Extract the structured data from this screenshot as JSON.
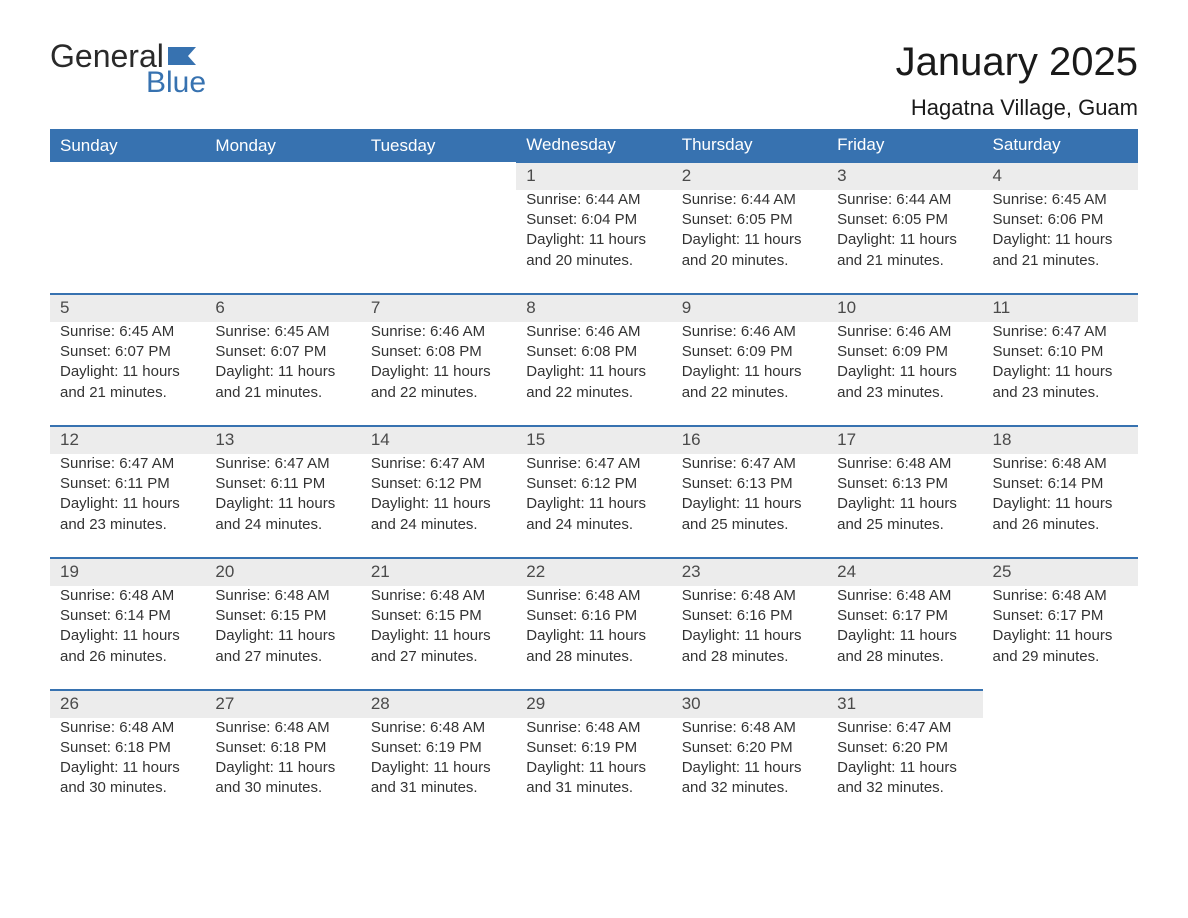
{
  "brand": {
    "line1": "General",
    "line2": "Blue",
    "flag_color": "#3772b0"
  },
  "title": "January 2025",
  "location": "Hagatna Village, Guam",
  "colors": {
    "header_bg": "#3772b0",
    "header_text": "#ffffff",
    "daynum_bg": "#ececec",
    "daynum_border": "#3772b0",
    "body_text": "#333333"
  },
  "weekdays": [
    "Sunday",
    "Monday",
    "Tuesday",
    "Wednesday",
    "Thursday",
    "Friday",
    "Saturday"
  ],
  "weeks": [
    [
      null,
      null,
      null,
      {
        "n": "1",
        "sunrise": "6:44 AM",
        "sunset": "6:04 PM",
        "daylight": "11 hours and 20 minutes."
      },
      {
        "n": "2",
        "sunrise": "6:44 AM",
        "sunset": "6:05 PM",
        "daylight": "11 hours and 20 minutes."
      },
      {
        "n": "3",
        "sunrise": "6:44 AM",
        "sunset": "6:05 PM",
        "daylight": "11 hours and 21 minutes."
      },
      {
        "n": "4",
        "sunrise": "6:45 AM",
        "sunset": "6:06 PM",
        "daylight": "11 hours and 21 minutes."
      }
    ],
    [
      {
        "n": "5",
        "sunrise": "6:45 AM",
        "sunset": "6:07 PM",
        "daylight": "11 hours and 21 minutes."
      },
      {
        "n": "6",
        "sunrise": "6:45 AM",
        "sunset": "6:07 PM",
        "daylight": "11 hours and 21 minutes."
      },
      {
        "n": "7",
        "sunrise": "6:46 AM",
        "sunset": "6:08 PM",
        "daylight": "11 hours and 22 minutes."
      },
      {
        "n": "8",
        "sunrise": "6:46 AM",
        "sunset": "6:08 PM",
        "daylight": "11 hours and 22 minutes."
      },
      {
        "n": "9",
        "sunrise": "6:46 AM",
        "sunset": "6:09 PM",
        "daylight": "11 hours and 22 minutes."
      },
      {
        "n": "10",
        "sunrise": "6:46 AM",
        "sunset": "6:09 PM",
        "daylight": "11 hours and 23 minutes."
      },
      {
        "n": "11",
        "sunrise": "6:47 AM",
        "sunset": "6:10 PM",
        "daylight": "11 hours and 23 minutes."
      }
    ],
    [
      {
        "n": "12",
        "sunrise": "6:47 AM",
        "sunset": "6:11 PM",
        "daylight": "11 hours and 23 minutes."
      },
      {
        "n": "13",
        "sunrise": "6:47 AM",
        "sunset": "6:11 PM",
        "daylight": "11 hours and 24 minutes."
      },
      {
        "n": "14",
        "sunrise": "6:47 AM",
        "sunset": "6:12 PM",
        "daylight": "11 hours and 24 minutes."
      },
      {
        "n": "15",
        "sunrise": "6:47 AM",
        "sunset": "6:12 PM",
        "daylight": "11 hours and 24 minutes."
      },
      {
        "n": "16",
        "sunrise": "6:47 AM",
        "sunset": "6:13 PM",
        "daylight": "11 hours and 25 minutes."
      },
      {
        "n": "17",
        "sunrise": "6:48 AM",
        "sunset": "6:13 PM",
        "daylight": "11 hours and 25 minutes."
      },
      {
        "n": "18",
        "sunrise": "6:48 AM",
        "sunset": "6:14 PM",
        "daylight": "11 hours and 26 minutes."
      }
    ],
    [
      {
        "n": "19",
        "sunrise": "6:48 AM",
        "sunset": "6:14 PM",
        "daylight": "11 hours and 26 minutes."
      },
      {
        "n": "20",
        "sunrise": "6:48 AM",
        "sunset": "6:15 PM",
        "daylight": "11 hours and 27 minutes."
      },
      {
        "n": "21",
        "sunrise": "6:48 AM",
        "sunset": "6:15 PM",
        "daylight": "11 hours and 27 minutes."
      },
      {
        "n": "22",
        "sunrise": "6:48 AM",
        "sunset": "6:16 PM",
        "daylight": "11 hours and 28 minutes."
      },
      {
        "n": "23",
        "sunrise": "6:48 AM",
        "sunset": "6:16 PM",
        "daylight": "11 hours and 28 minutes."
      },
      {
        "n": "24",
        "sunrise": "6:48 AM",
        "sunset": "6:17 PM",
        "daylight": "11 hours and 28 minutes."
      },
      {
        "n": "25",
        "sunrise": "6:48 AM",
        "sunset": "6:17 PM",
        "daylight": "11 hours and 29 minutes."
      }
    ],
    [
      {
        "n": "26",
        "sunrise": "6:48 AM",
        "sunset": "6:18 PM",
        "daylight": "11 hours and 30 minutes."
      },
      {
        "n": "27",
        "sunrise": "6:48 AM",
        "sunset": "6:18 PM",
        "daylight": "11 hours and 30 minutes."
      },
      {
        "n": "28",
        "sunrise": "6:48 AM",
        "sunset": "6:19 PM",
        "daylight": "11 hours and 31 minutes."
      },
      {
        "n": "29",
        "sunrise": "6:48 AM",
        "sunset": "6:19 PM",
        "daylight": "11 hours and 31 minutes."
      },
      {
        "n": "30",
        "sunrise": "6:48 AM",
        "sunset": "6:20 PM",
        "daylight": "11 hours and 32 minutes."
      },
      {
        "n": "31",
        "sunrise": "6:47 AM",
        "sunset": "6:20 PM",
        "daylight": "11 hours and 32 minutes."
      },
      null
    ]
  ],
  "labels": {
    "sunrise": "Sunrise:",
    "sunset": "Sunset:",
    "daylight": "Daylight:"
  }
}
